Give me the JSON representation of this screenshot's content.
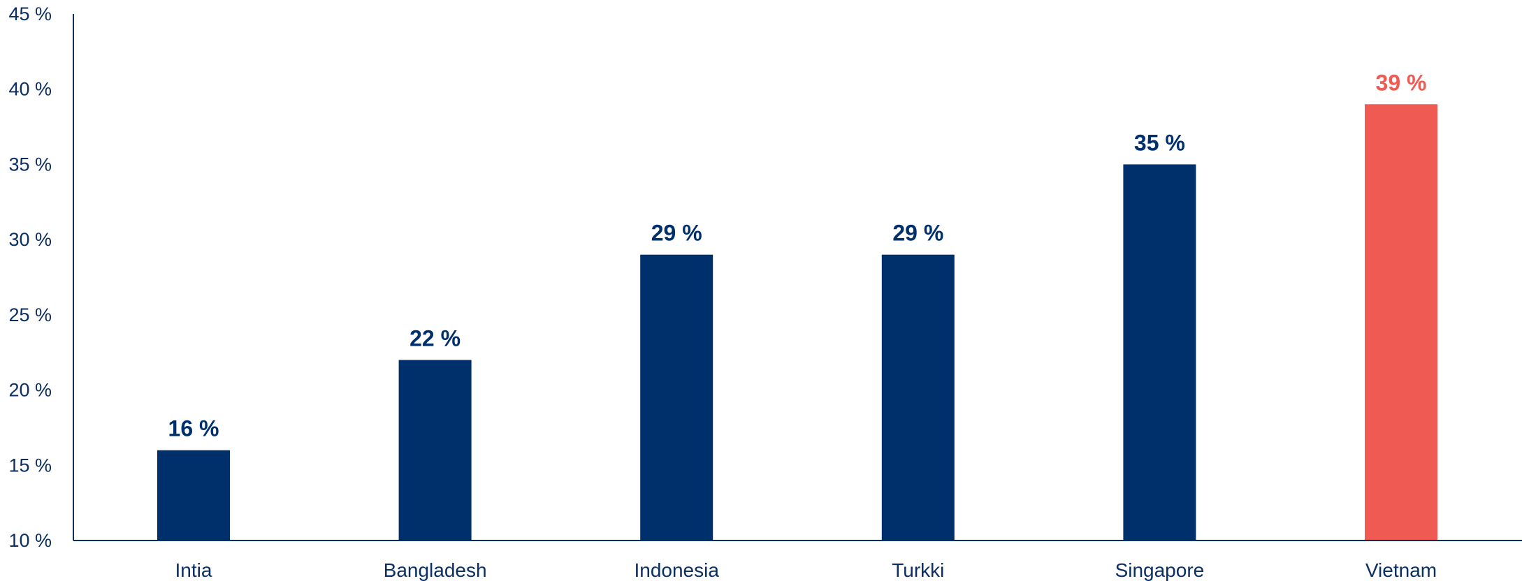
{
  "chart_data": {
    "type": "bar",
    "categories": [
      "Intia",
      "Bangladesh",
      "Indonesia",
      "Turkki",
      "Singapore",
      "Vietnam"
    ],
    "values": [
      16,
      22,
      29,
      29,
      35,
      39
    ],
    "value_labels": [
      "16 %",
      "22 %",
      "29 %",
      "29 %",
      "35 %",
      "39 %"
    ],
    "ylim": [
      10,
      45
    ],
    "yticks": [
      10,
      15,
      20,
      25,
      30,
      35,
      40,
      45
    ],
    "ytick_labels": [
      "10 %",
      "15 %",
      "20 %",
      "25 %",
      "30 %",
      "35 %",
      "40 %",
      "45 %"
    ],
    "title": "",
    "xlabel": "",
    "ylabel": "",
    "grid": false,
    "legend": "none",
    "colors": {
      "default_bar": "#00306b",
      "highlight_bar": "#ef5a52",
      "axis": "#0b2f63",
      "text": "#0b2f63"
    },
    "highlight_category": "Vietnam"
  }
}
